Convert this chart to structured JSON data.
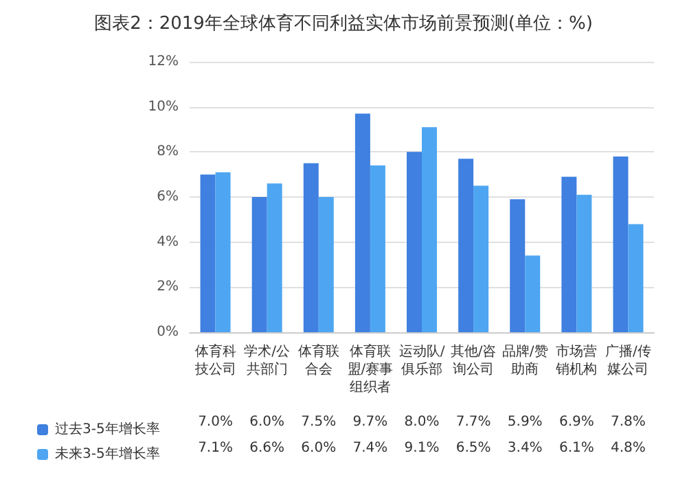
{
  "chart_data": {
    "type": "bar",
    "title": "图表2：2019年全球体育不同利益实体市场前景预测(单位：%)",
    "categories": [
      "体育科技公司",
      "学术/公共部门",
      "体育联合会",
      "体育联盟/赛事组织者",
      "运动队/俱乐部",
      "其他/咨询公司",
      "品牌/赞助商",
      "市场营销机构",
      "广播/传媒公司"
    ],
    "series": [
      {
        "name": "过去3-5年增长率",
        "color": "#3f80e0",
        "values": [
          7.0,
          6.0,
          7.5,
          9.7,
          8.0,
          7.7,
          5.9,
          6.9,
          7.8
        ],
        "value_labels": [
          "7.0%",
          "6.0%",
          "7.5%",
          "9.7%",
          "8.0%",
          "7.7%",
          "5.9%",
          "6.9%",
          "7.8%"
        ]
      },
      {
        "name": "未来3-5年增长率",
        "color": "#4ea6f2",
        "values": [
          7.1,
          6.6,
          6.0,
          7.4,
          9.1,
          6.5,
          3.4,
          6.1,
          4.8
        ],
        "value_labels": [
          "7.1%",
          "6.6%",
          "6.0%",
          "7.4%",
          "9.1%",
          "6.5%",
          "3.4%",
          "6.1%",
          "4.8%"
        ]
      }
    ],
    "ylim": [
      0,
      12
    ],
    "yticks": [
      {
        "value": 0,
        "label": "0%"
      },
      {
        "value": 2,
        "label": "2%"
      },
      {
        "value": 4,
        "label": "4%"
      },
      {
        "value": 6,
        "label": "6%"
      },
      {
        "value": 8,
        "label": "8%"
      },
      {
        "value": 10,
        "label": "10%"
      },
      {
        "value": 12,
        "label": "12%"
      }
    ],
    "grid": "y",
    "legend": "bottom left"
  }
}
